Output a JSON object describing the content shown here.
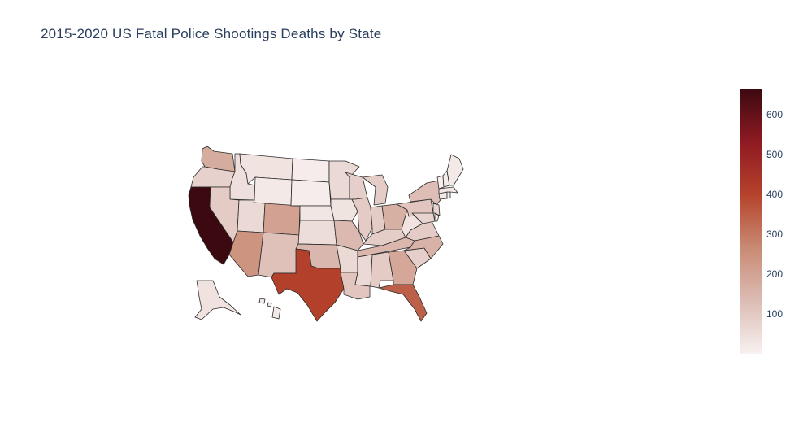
{
  "chart_data": {
    "type": "choropleth",
    "title": "2015-2020 US Fatal Police Shootings Deaths by State",
    "scope": "usa",
    "colorscale": [
      "#f7f1f0",
      "#dcbcb4",
      "#c98a73",
      "#b5432c",
      "#8e1a22",
      "#3c0911"
    ],
    "zmin": 0,
    "zmax": 665,
    "colorbar_ticks": [
      100,
      200,
      300,
      400,
      500,
      600
    ],
    "values": {
      "AL": 95,
      "AK": 38,
      "AZ": 240,
      "AR": 60,
      "CA": 665,
      "CO": 205,
      "CT": 17,
      "DE": 12,
      "FL": 345,
      "GA": 190,
      "HI": 23,
      "ID": 45,
      "IL": 95,
      "IN": 95,
      "IA": 33,
      "KS": 50,
      "KY": 90,
      "LA": 110,
      "ME": 20,
      "MD": 75,
      "MA": 25,
      "MI": 90,
      "MN": 60,
      "MS": 60,
      "MO": 140,
      "MT": 35,
      "NE": 27,
      "NV": 95,
      "NH": 13,
      "NJ": 75,
      "NM": 120,
      "NY": 130,
      "NC": 160,
      "ND": 12,
      "OH": 165,
      "OK": 145,
      "OR": 80,
      "PA": 110,
      "RI": 5,
      "SC": 85,
      "SD": 12,
      "TN": 150,
      "TX": 410,
      "UT": 60,
      "VT": 8,
      "VA": 95,
      "WA": 175,
      "WV": 35,
      "WI": 85,
      "WY": 20
    }
  }
}
